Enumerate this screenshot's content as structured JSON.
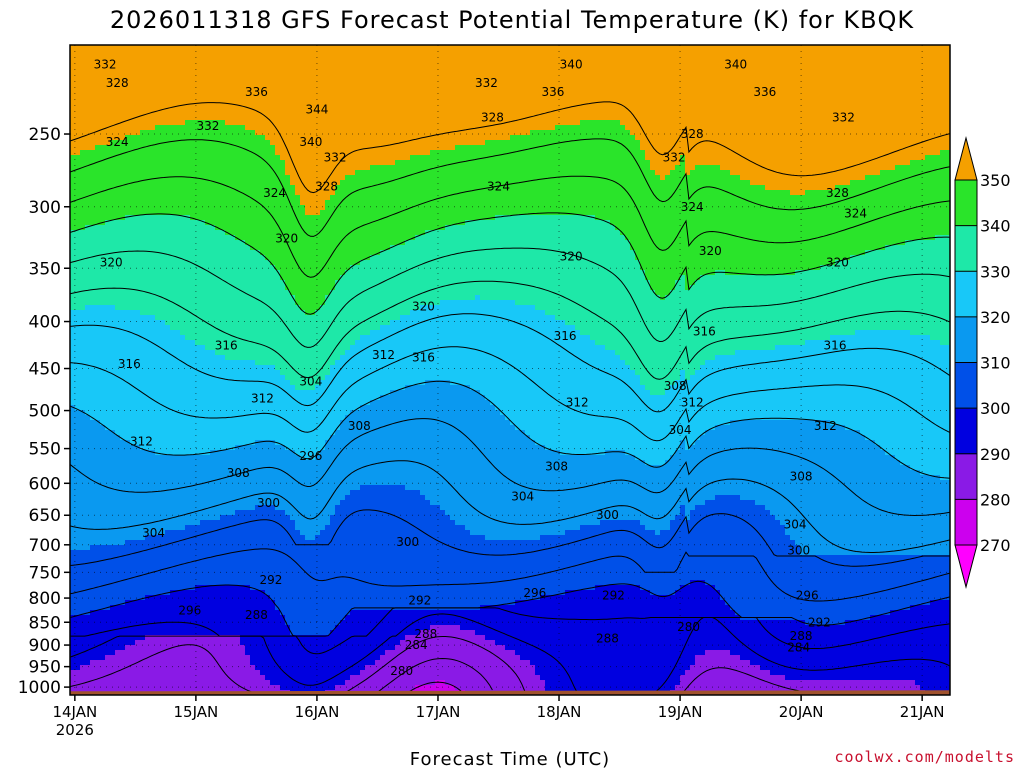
{
  "page": {
    "title": "2026011318 GFS Forecast Potential Temperature (K) for KBQK",
    "credit": "coolwx.com/modelts"
  },
  "chart_data": {
    "type": "heatmap",
    "title": "2026011318 GFS Forecast Potential Temperature (K) for KBQK",
    "xlabel": "Forecast Time (UTC)",
    "ylabel": "",
    "x_ticks": [
      {
        "label": "14JAN",
        "sub": "2026",
        "day": 0
      },
      {
        "label": "15JAN",
        "sub": "",
        "day": 1
      },
      {
        "label": "16JAN",
        "sub": "",
        "day": 2
      },
      {
        "label": "17JAN",
        "sub": "",
        "day": 3
      },
      {
        "label": "18JAN",
        "sub": "",
        "day": 4
      },
      {
        "label": "19JAN",
        "sub": "",
        "day": 5
      },
      {
        "label": "20JAN",
        "sub": "",
        "day": 6
      },
      {
        "label": "21JAN",
        "sub": "",
        "day": 7
      }
    ],
    "x_range_days": [
      -0.04,
      7.23
    ],
    "y_axis": "pressure (hPa), inverted, log scale",
    "y_ticks": [
      250,
      300,
      350,
      400,
      450,
      500,
      550,
      600,
      650,
      700,
      750,
      800,
      850,
      900,
      950,
      1000
    ],
    "y_range": [
      200,
      1020
    ],
    "grid": "dotted",
    "colorbar": {
      "levels": [
        270,
        280,
        290,
        300,
        310,
        320,
        330,
        340,
        350
      ],
      "colors": [
        "#ff00ff",
        "#cc00ee",
        "#8a1ae6",
        "#0000e0",
        "#0050e8",
        "#0a99f0",
        "#18c8f8",
        "#1ee8a8",
        "#2ae42a",
        "#f2f200",
        "#f5a000"
      ],
      "extends": "both"
    },
    "background_color": "#ffffff",
    "surface_color": "#a0522d",
    "contour_interval_k": 4,
    "contour_labels": [
      {
        "v": 332,
        "d": 0.25,
        "p": 210
      },
      {
        "v": 328,
        "d": 0.35,
        "p": 220
      },
      {
        "v": 324,
        "d": 0.35,
        "p": 255
      },
      {
        "v": 320,
        "d": 0.3,
        "p": 345
      },
      {
        "v": 316,
        "d": 0.45,
        "p": 445
      },
      {
        "v": 312,
        "d": 0.55,
        "p": 540
      },
      {
        "v": 304,
        "d": 0.65,
        "p": 680
      },
      {
        "v": 296,
        "d": 0.95,
        "p": 825
      },
      {
        "v": 336,
        "d": 1.5,
        "p": 225
      },
      {
        "v": 332,
        "d": 1.1,
        "p": 245
      },
      {
        "v": 324,
        "d": 1.65,
        "p": 290
      },
      {
        "v": 320,
        "d": 1.75,
        "p": 325
      },
      {
        "v": 316,
        "d": 1.25,
        "p": 425
      },
      {
        "v": 312,
        "d": 1.55,
        "p": 485
      },
      {
        "v": 308,
        "d": 1.35,
        "p": 585
      },
      {
        "v": 300,
        "d": 1.6,
        "p": 630
      },
      {
        "v": 292,
        "d": 1.62,
        "p": 765
      },
      {
        "v": 288,
        "d": 1.5,
        "p": 835
      },
      {
        "v": 344,
        "d": 2.0,
        "p": 235
      },
      {
        "v": 340,
        "d": 1.95,
        "p": 255
      },
      {
        "v": 332,
        "d": 2.15,
        "p": 265
      },
      {
        "v": 328,
        "d": 2.08,
        "p": 285
      },
      {
        "v": 304,
        "d": 1.95,
        "p": 465
      },
      {
        "v": 296,
        "d": 1.95,
        "p": 560
      },
      {
        "v": 308,
        "d": 2.35,
        "p": 520
      },
      {
        "v": 312,
        "d": 2.55,
        "p": 435
      },
      {
        "v": 316,
        "d": 2.88,
        "p": 438
      },
      {
        "v": 320,
        "d": 2.88,
        "p": 385
      },
      {
        "v": 300,
        "d": 2.75,
        "p": 695
      },
      {
        "v": 292,
        "d": 2.85,
        "p": 805
      },
      {
        "v": 288,
        "d": 2.9,
        "p": 875
      },
      {
        "v": 284,
        "d": 2.82,
        "p": 900
      },
      {
        "v": 280,
        "d": 2.7,
        "p": 960
      },
      {
        "v": 332,
        "d": 3.4,
        "p": 220
      },
      {
        "v": 328,
        "d": 3.45,
        "p": 240
      },
      {
        "v": 324,
        "d": 3.5,
        "p": 285
      },
      {
        "v": 304,
        "d": 3.7,
        "p": 620
      },
      {
        "v": 296,
        "d": 3.8,
        "p": 790
      },
      {
        "v": 340,
        "d": 4.1,
        "p": 210
      },
      {
        "v": 336,
        "d": 3.95,
        "p": 225
      },
      {
        "v": 320,
        "d": 4.1,
        "p": 340
      },
      {
        "v": 316,
        "d": 4.05,
        "p": 415
      },
      {
        "v": 312,
        "d": 4.15,
        "p": 490
      },
      {
        "v": 308,
        "d": 3.98,
        "p": 575
      },
      {
        "v": 300,
        "d": 4.4,
        "p": 650
      },
      {
        "v": 292,
        "d": 4.45,
        "p": 795
      },
      {
        "v": 288,
        "d": 4.4,
        "p": 885
      },
      {
        "v": 332,
        "d": 4.95,
        "p": 265
      },
      {
        "v": 328,
        "d": 5.1,
        "p": 250
      },
      {
        "v": 324,
        "d": 5.1,
        "p": 300
      },
      {
        "v": 320,
        "d": 5.25,
        "p": 335
      },
      {
        "v": 316,
        "d": 5.2,
        "p": 410
      },
      {
        "v": 308,
        "d": 4.96,
        "p": 470
      },
      {
        "v": 312,
        "d": 5.1,
        "p": 490
      },
      {
        "v": 304,
        "d": 5.0,
        "p": 525
      },
      {
        "v": 280,
        "d": 5.07,
        "p": 860
      },
      {
        "v": 340,
        "d": 5.46,
        "p": 210
      },
      {
        "v": 336,
        "d": 5.7,
        "p": 225
      },
      {
        "v": 332,
        "d": 6.35,
        "p": 240
      },
      {
        "v": 328,
        "d": 6.3,
        "p": 290
      },
      {
        "v": 324,
        "d": 6.45,
        "p": 305
      },
      {
        "v": 320,
        "d": 6.3,
        "p": 345
      },
      {
        "v": 316,
        "d": 6.28,
        "p": 425
      },
      {
        "v": 312,
        "d": 6.2,
        "p": 520
      },
      {
        "v": 308,
        "d": 6.0,
        "p": 590
      },
      {
        "v": 304,
        "d": 5.95,
        "p": 665
      },
      {
        "v": 300,
        "d": 5.98,
        "p": 710
      },
      {
        "v": 296,
        "d": 6.05,
        "p": 795
      },
      {
        "v": 292,
        "d": 6.15,
        "p": 850
      },
      {
        "v": 288,
        "d": 6.0,
        "p": 880
      },
      {
        "v": 284,
        "d": 5.98,
        "p": 905
      }
    ]
  }
}
